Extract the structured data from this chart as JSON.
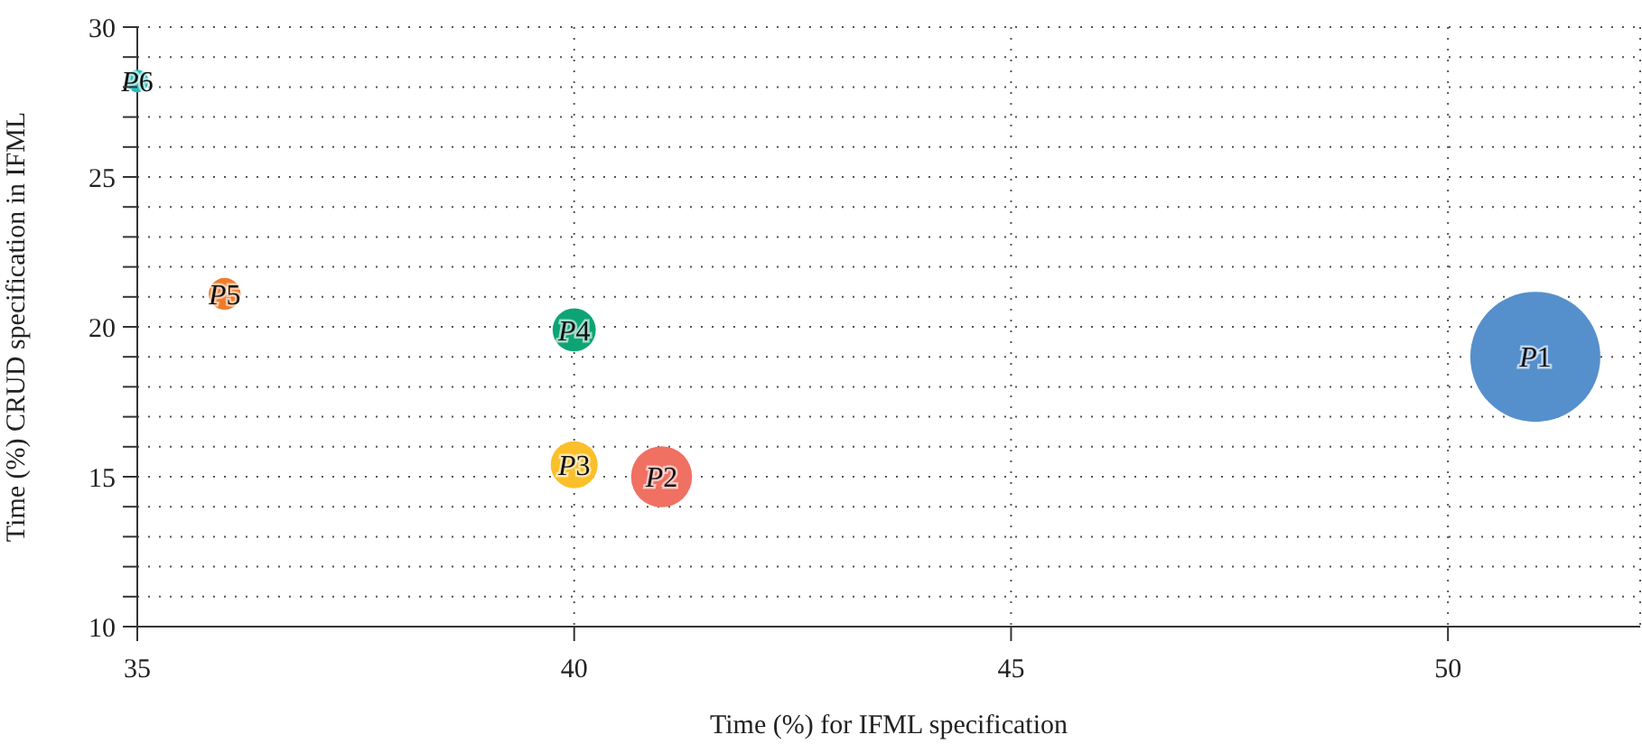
{
  "chart_data": {
    "type": "bubble",
    "xlabel": "Time (%) for IFML specification",
    "ylabel": "Time (%) CRUD specification in IFML",
    "xlim": [
      35,
      52.2
    ],
    "xticks": [
      35,
      40,
      45,
      50
    ],
    "ylim": [
      10,
      30
    ],
    "yticks": [
      10,
      {
        "value": 11,
        "label": null
      },
      {
        "value": 12,
        "label": null
      },
      {
        "value": 13,
        "label": null
      },
      {
        "value": 14,
        "label": null
      },
      15,
      {
        "value": 16,
        "label": null
      },
      {
        "value": 17,
        "label": null
      },
      {
        "value": 18,
        "label": null
      },
      {
        "value": 19,
        "label": null
      },
      20,
      {
        "value": 21,
        "label": null
      },
      {
        "value": 22,
        "label": null
      },
      {
        "value": 23,
        "label": null
      },
      {
        "value": 24,
        "label": null
      },
      25,
      {
        "value": 26,
        "label": null
      },
      {
        "value": 27,
        "label": null
      },
      {
        "value": 28,
        "label": null
      },
      {
        "value": 29,
        "label": null
      },
      30
    ],
    "grid": true,
    "legend": false,
    "series": [
      {
        "name": "P1",
        "color": "#5590cc",
        "x": [
          51.0
        ],
        "values": [
          19.0
        ],
        "sizes": [
          1
        ]
      },
      {
        "name": "P2",
        "color": "#f07062",
        "x": [
          41.0
        ],
        "values": [
          15.0
        ],
        "sizes": [
          0.22
        ]
      },
      {
        "name": "P3",
        "color": "#fbbf2a",
        "x": [
          40.0
        ],
        "values": [
          15.4
        ],
        "sizes": [
          0.13
        ]
      },
      {
        "name": "P4",
        "color": "#0da474",
        "x": [
          40.0
        ],
        "values": [
          19.9
        ],
        "sizes": [
          0.11
        ]
      },
      {
        "name": "P5",
        "color": "#f07c2a",
        "x": [
          36.0
        ],
        "values": [
          21.1
        ],
        "sizes": [
          0.06
        ]
      },
      {
        "name": "P6",
        "color": "#2bbcbc",
        "x": [
          35.0
        ],
        "values": [
          28.2
        ],
        "sizes": [
          0.03
        ]
      }
    ]
  }
}
